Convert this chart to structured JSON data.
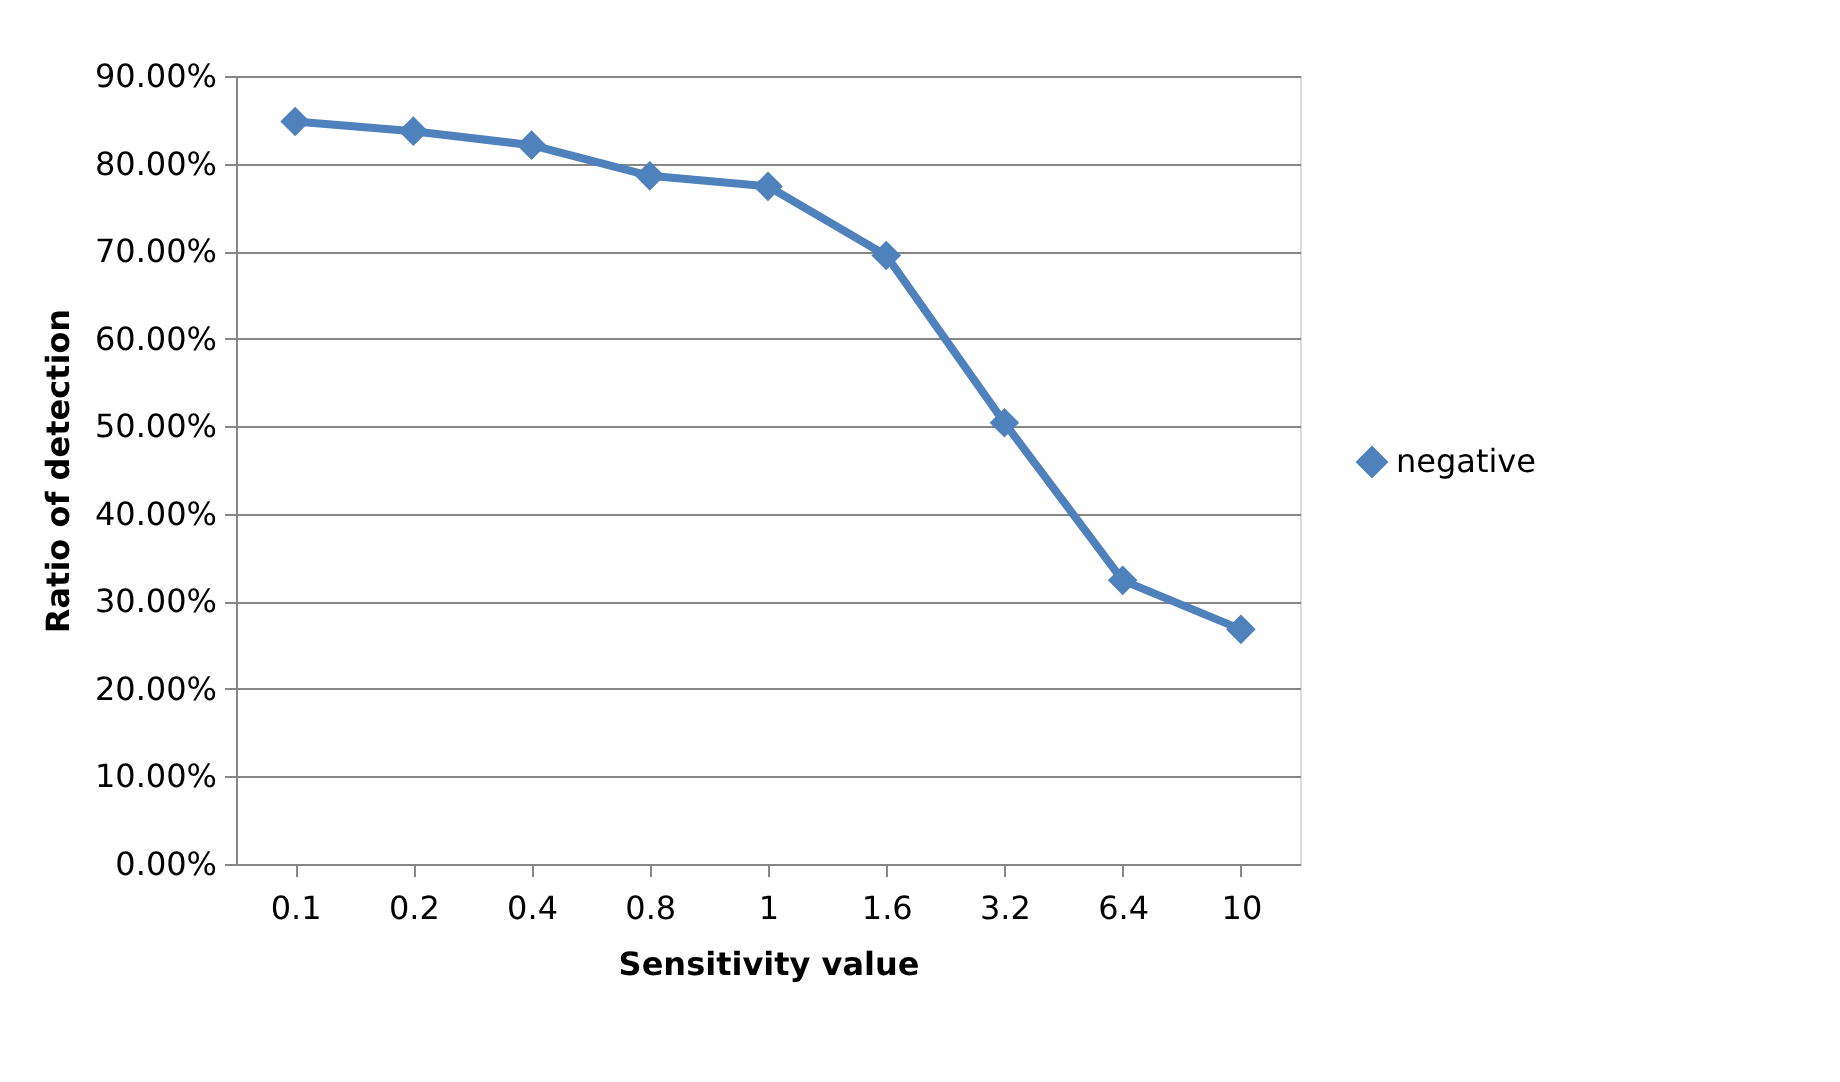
{
  "chart_data": {
    "type": "line",
    "xlabel": "Sensitivity value",
    "ylabel": "Ratio of detection",
    "categories": [
      "0.1",
      "0.2",
      "0.4",
      "0.8",
      "1",
      "1.6",
      "3.2",
      "6.4",
      "10"
    ],
    "series": [
      {
        "name": "negative",
        "color": "#4f81bd",
        "values": [
          84.8,
          83.7,
          82.1,
          78.6,
          77.4,
          69.5,
          50.4,
          32.4,
          26.8
        ]
      }
    ],
    "ylim": [
      0,
      90
    ],
    "yticks": [
      {
        "value": 0,
        "label": "0.00%"
      },
      {
        "value": 10,
        "label": "10.00%"
      },
      {
        "value": 20,
        "label": "20.00%"
      },
      {
        "value": 30,
        "label": "30.00%"
      },
      {
        "value": 40,
        "label": "40.00%"
      },
      {
        "value": 50,
        "label": "50.00%"
      },
      {
        "value": 60,
        "label": "60.00%"
      },
      {
        "value": 70,
        "label": "70.00%"
      },
      {
        "value": 80,
        "label": "80.00%"
      },
      {
        "value": 90,
        "label": "90.00%"
      }
    ],
    "grid": "y",
    "legend": "right",
    "marker": "diamond",
    "line_style": "solid"
  }
}
